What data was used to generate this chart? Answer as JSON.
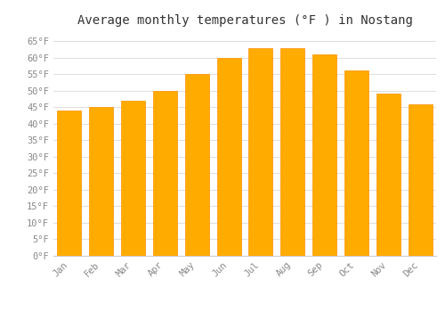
{
  "title": "Average monthly temperatures (°F ) in Nostang",
  "months": [
    "Jan",
    "Feb",
    "Mar",
    "Apr",
    "May",
    "Jun",
    "Jul",
    "Aug",
    "Sep",
    "Oct",
    "Nov",
    "Dec"
  ],
  "values": [
    44,
    45,
    47,
    50,
    55,
    60,
    63,
    63,
    61,
    56,
    49,
    46
  ],
  "bar_color": "#FFAB00",
  "bar_edge_color": "#FF9000",
  "ylim": [
    0,
    68
  ],
  "yticks": [
    0,
    5,
    10,
    15,
    20,
    25,
    30,
    35,
    40,
    45,
    50,
    55,
    60,
    65
  ],
  "ytick_labels": [
    "0°F",
    "5°F",
    "10°F",
    "15°F",
    "20°F",
    "25°F",
    "30°F",
    "35°F",
    "40°F",
    "45°F",
    "50°F",
    "55°F",
    "60°F",
    "65°F"
  ],
  "background_color": "#ffffff",
  "grid_color": "#e0e0e0",
  "title_fontsize": 10,
  "tick_fontsize": 7.5,
  "tick_color": "#888888",
  "title_color": "#333333",
  "font_family": "monospace",
  "bar_width": 0.75
}
